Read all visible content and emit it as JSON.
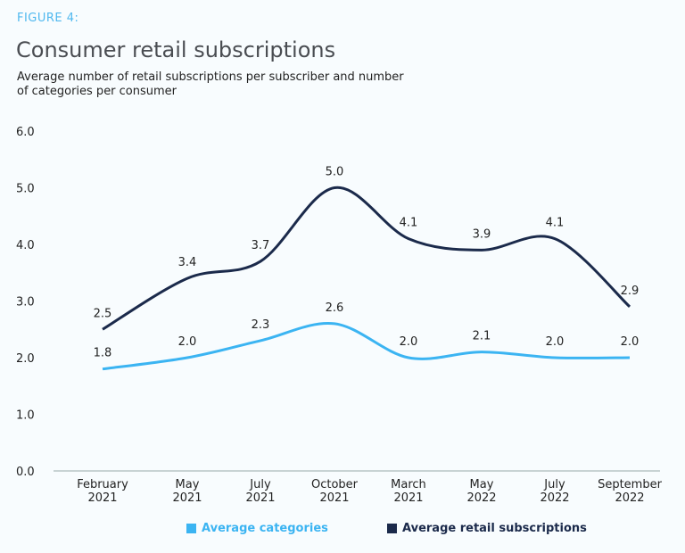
{
  "figure_label": "FIGURE 4:",
  "chart_data": {
    "type": "line",
    "title": "Consumer retail subscriptions",
    "subtitle": "Average number of retail subscriptions per subscriber and number of categories per consumer",
    "categories": [
      [
        "February",
        "2021"
      ],
      [
        "May",
        "2021"
      ],
      [
        "July",
        "2021"
      ],
      [
        "October",
        "2021"
      ],
      [
        "March",
        "2021"
      ],
      [
        "May",
        "2022"
      ],
      [
        "July",
        "2022"
      ],
      [
        "September",
        "2022"
      ]
    ],
    "ylim": [
      0,
      6
    ],
    "yticks": [
      "0.0",
      "1.0",
      "2.0",
      "3.0",
      "4.0",
      "5.0",
      "6.0"
    ],
    "grid": false,
    "legend_placement": "bottom",
    "series": [
      {
        "name": "Average categories",
        "color": "#3bb4f2",
        "values": [
          1.8,
          2.0,
          2.3,
          2.6,
          2.0,
          2.1,
          2.0,
          2.0
        ]
      },
      {
        "name": "Average retail subscriptions",
        "color": "#1b2a4b",
        "values": [
          2.5,
          3.4,
          3.7,
          5.0,
          4.1,
          3.9,
          4.1,
          2.9
        ]
      }
    ]
  }
}
